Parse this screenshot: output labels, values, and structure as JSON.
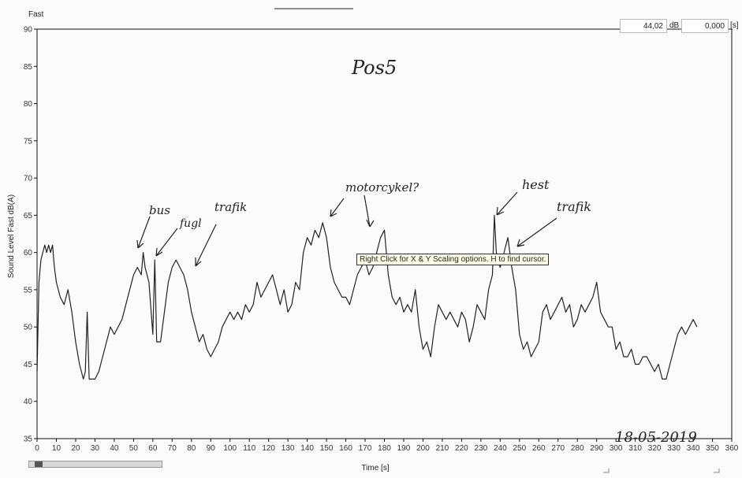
{
  "header": {
    "mode_label": "Fast",
    "cursor_value": "44,02",
    "cursor_unit": "dB",
    "cursor_time": "0,000",
    "cursor_time_unit": "[s]"
  },
  "tooltip": "Right Click for X & Y Scaling options. H to find cursor.",
  "handwriting": {
    "title": "Pos5",
    "date": "18-05-2019",
    "notes": [
      "bus",
      "fugl",
      "trafik",
      "motorcykel?",
      "hest",
      "trafik"
    ]
  },
  "colors": {
    "line": "#222222",
    "grid": "#000000",
    "background": "#fbfbfb"
  },
  "chart_data": {
    "type": "line",
    "title": "",
    "xlabel": "Time [s]",
    "ylabel": "Sound Level Fast dB(A)",
    "xlim": [
      0,
      360
    ],
    "ylim": [
      35,
      90
    ],
    "xticks": [
      0,
      10,
      20,
      30,
      40,
      50,
      60,
      70,
      80,
      90,
      100,
      110,
      120,
      130,
      140,
      150,
      160,
      170,
      180,
      190,
      200,
      210,
      220,
      230,
      240,
      250,
      260,
      270,
      280,
      290,
      300,
      310,
      320,
      330,
      340,
      350,
      360
    ],
    "yticks": [
      35,
      40,
      45,
      50,
      55,
      60,
      65,
      70,
      75,
      80,
      85,
      90
    ],
    "grid": false,
    "series": [
      {
        "x": [
          0,
          1,
          2,
          3,
          4,
          5,
          6,
          7,
          8,
          9,
          10,
          12,
          14,
          16,
          18,
          20,
          22,
          24,
          25,
          26,
          27,
          28,
          30,
          32,
          34,
          36,
          38,
          40,
          42,
          44,
          46,
          48,
          50,
          52,
          54,
          55,
          56,
          58,
          60,
          61,
          62,
          64,
          66,
          68,
          70,
          72,
          74,
          76,
          78,
          80,
          82,
          84,
          86,
          88,
          90,
          92,
          94,
          96,
          98,
          100,
          102,
          104,
          106,
          108,
          110,
          112,
          114,
          116,
          118,
          120,
          122,
          124,
          126,
          128,
          130,
          132,
          134,
          136,
          138,
          140,
          142,
          144,
          146,
          148,
          150,
          152,
          154,
          156,
          158,
          160,
          162,
          164,
          166,
          168,
          170,
          172,
          174,
          176,
          178,
          180,
          182,
          184,
          186,
          188,
          190,
          192,
          194,
          196,
          198,
          200,
          202,
          204,
          206,
          208,
          210,
          212,
          214,
          216,
          218,
          220,
          222,
          224,
          226,
          228,
          230,
          232,
          234,
          236,
          237,
          238,
          240,
          242,
          244,
          246,
          248,
          250,
          252,
          254,
          256,
          258,
          260,
          262,
          264,
          266,
          268,
          270,
          272,
          274,
          276,
          278,
          280,
          282,
          284,
          286,
          288,
          290,
          292,
          294,
          296,
          298,
          300,
          302,
          304,
          306,
          308,
          310,
          312,
          314,
          316,
          318,
          320,
          322,
          324,
          326,
          328,
          330,
          332,
          334,
          336,
          338,
          340,
          342
        ],
        "y": [
          44,
          56,
          59,
          60,
          61,
          60,
          61,
          60,
          61,
          58,
          56,
          54,
          53,
          55,
          52,
          48,
          45,
          43,
          44,
          52,
          43,
          43,
          43,
          44,
          46,
          48,
          50,
          49,
          50,
          51,
          53,
          55,
          57,
          58,
          57,
          60,
          58,
          56,
          49,
          59,
          48,
          48,
          52,
          56,
          58,
          59,
          58,
          57,
          55,
          52,
          50,
          48,
          49,
          47,
          46,
          47,
          48,
          50,
          51,
          52,
          51,
          52,
          51,
          53,
          52,
          53,
          56,
          54,
          55,
          56,
          57,
          55,
          53,
          55,
          52,
          53,
          56,
          55,
          60,
          62,
          61,
          63,
          62,
          64,
          62,
          58,
          56,
          55,
          54,
          54,
          53,
          55,
          57,
          58,
          59,
          57,
          58,
          60,
          62,
          63,
          57,
          54,
          53,
          54,
          52,
          53,
          52,
          55,
          50,
          47,
          48,
          46,
          50,
          53,
          52,
          51,
          52,
          51,
          50,
          52,
          51,
          48,
          50,
          53,
          52,
          51,
          55,
          57,
          65,
          60,
          58,
          60,
          62,
          58,
          55,
          49,
          47,
          48,
          46,
          47,
          48,
          52,
          53,
          51,
          52,
          53,
          54,
          52,
          53,
          50,
          51,
          53,
          52,
          53,
          54,
          56,
          52,
          51,
          50,
          50,
          47,
          48,
          46,
          46,
          47,
          45,
          45,
          46,
          46,
          45,
          44,
          45,
          43,
          43,
          45,
          47,
          49,
          50,
          49,
          50,
          51,
          50
        ]
      }
    ]
  }
}
